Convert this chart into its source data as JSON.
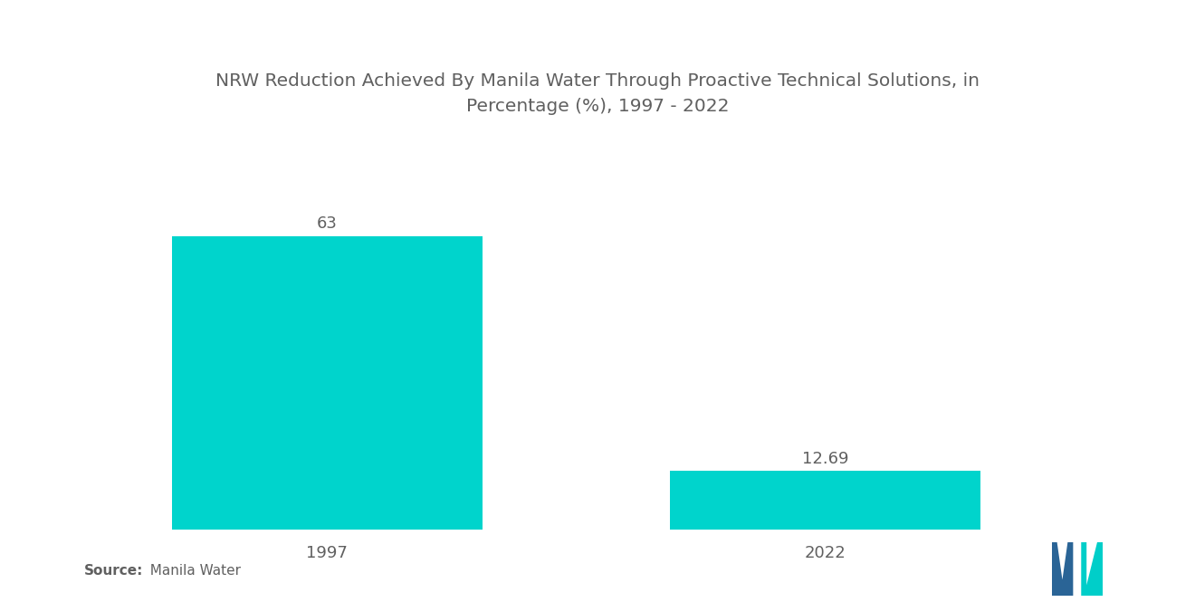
{
  "title": "NRW Reduction Achieved By Manila Water Through Proactive Technical Solutions, in\nPercentage (%), 1997 - 2022",
  "categories": [
    "1997",
    "2022"
  ],
  "values": [
    63,
    12.69
  ],
  "bar_color": "#00D4CC",
  "bar_width": 0.28,
  "value_labels": [
    "63",
    "12.69"
  ],
  "background_color": "#ffffff",
  "title_fontsize": 14.5,
  "label_fontsize": 13,
  "value_fontsize": 13,
  "source_bold": "Source:",
  "source_normal": "  Manila Water",
  "ylim": [
    0,
    80
  ],
  "title_color": "#606060",
  "label_color": "#606060",
  "value_color": "#606060",
  "x_positions": [
    0.22,
    0.67
  ],
  "xlim": [
    0.0,
    0.95
  ]
}
